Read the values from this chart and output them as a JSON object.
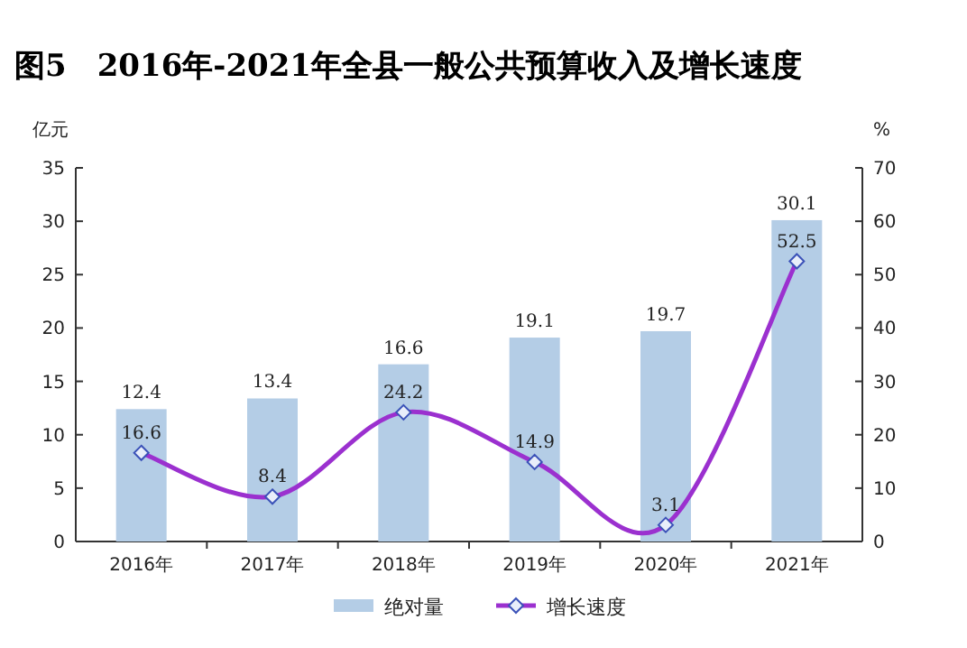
{
  "chart_data": {
    "type": "bar",
    "title": "图5　2016年-2021年全县一般公共预算收入及增长速度",
    "ylabel": "亿元",
    "y2label": "%",
    "categories": [
      "2016年",
      "2017年",
      "2018年",
      "2019年",
      "2020年",
      "2021年"
    ],
    "series": [
      {
        "name": "绝对量",
        "color": "#b4cde6",
        "values": [
          12.4,
          13.4,
          16.6,
          19.1,
          19.7,
          30.1
        ]
      },
      {
        "name": "增长速度",
        "type": "line",
        "axis": "y2",
        "color": "#9b30cf",
        "marker": "diamond",
        "values": [
          16.6,
          8.4,
          24.2,
          14.9,
          3.1,
          52.5
        ]
      }
    ],
    "ylim": [
      0,
      35
    ],
    "yticks": [
      0,
      5,
      10,
      15,
      20,
      25,
      30,
      35
    ],
    "y2lim": [
      0,
      70
    ],
    "y2ticks": [
      0,
      10,
      20,
      30,
      40,
      50,
      60,
      70
    ],
    "data_labels": true,
    "legend": "bottom",
    "grid": false
  }
}
